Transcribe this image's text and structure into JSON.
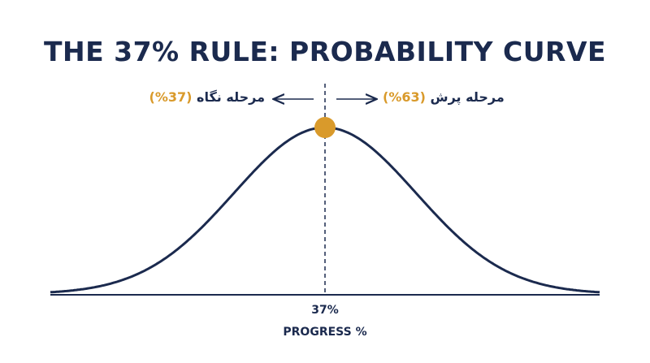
{
  "title": "THE 37% RULE: PROBABILITY CURVE",
  "left_phase": {
    "label": "مرحله نگاه",
    "percent": "(%37)"
  },
  "right_phase": {
    "label": "مرحله پرش",
    "percent": "(%63)"
  },
  "marker_label": "37%",
  "axis_title": "PROGRESS %"
}
